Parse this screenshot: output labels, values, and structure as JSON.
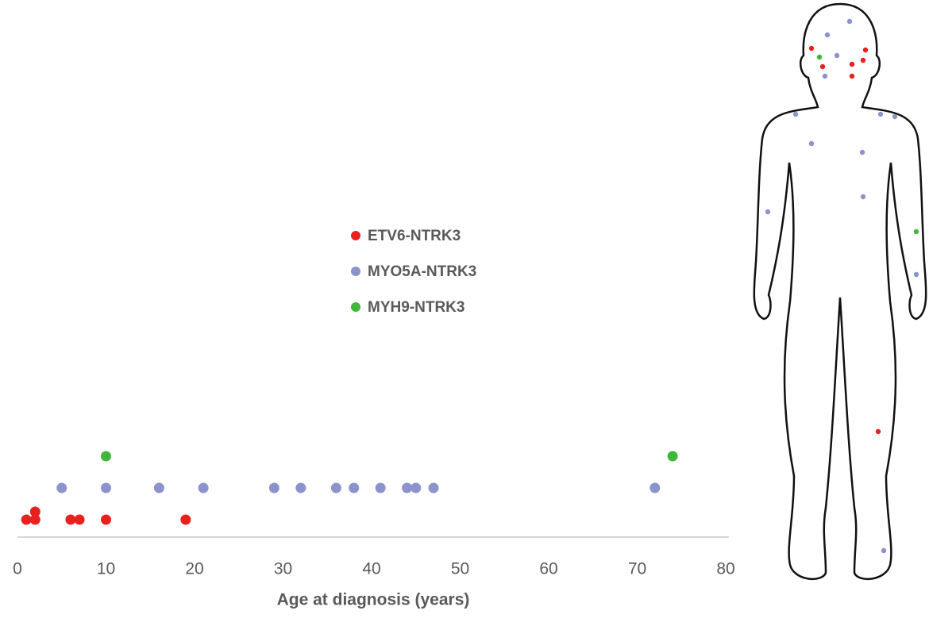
{
  "chart_data": {
    "type": "strip",
    "xlabel": "Age at diagnosis (years)",
    "xlim": [
      0,
      80
    ],
    "xticks": [
      0,
      10,
      20,
      30,
      40,
      50,
      60,
      70,
      80
    ],
    "series": [
      {
        "name": "ETV6-NTRK3",
        "color": "#e8201e",
        "values": [
          1,
          2,
          2,
          6,
          7,
          10,
          19
        ]
      },
      {
        "name": "MYO5A-NTRK3",
        "color": "#8c93cc",
        "values": [
          5,
          10,
          16,
          21,
          29,
          32,
          36,
          38,
          41,
          44,
          45,
          47,
          72
        ]
      },
      {
        "name": "MYH9-NTRK3",
        "color": "#3fb63c",
        "values": [
          10,
          74
        ]
      }
    ]
  }
}
